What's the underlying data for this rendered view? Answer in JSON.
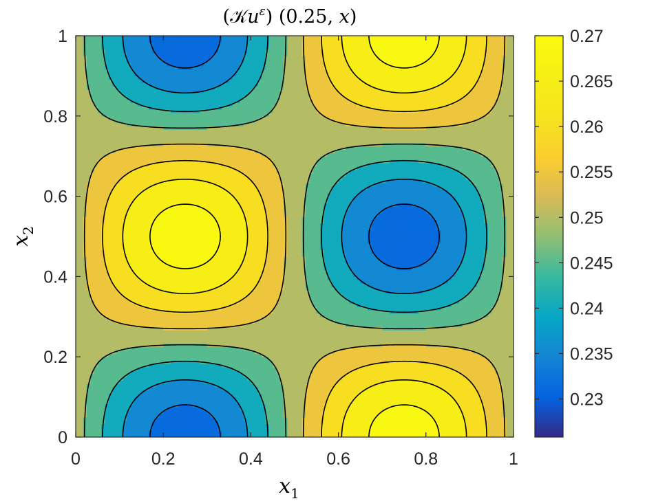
{
  "chart_data": {
    "type": "heatmap",
    "subtype": "filled-contour",
    "title": "(𝒦u^ε) (0.25, x)",
    "title_parts": {
      "open": "(",
      "operator": "𝒦",
      "var": "u",
      "sup": "ε",
      "close": ")",
      "args": "(0.25, ",
      "argvar": "x",
      "argclose": ")"
    },
    "xlabel": {
      "var": "x",
      "sub": "1"
    },
    "ylabel": {
      "var": "x",
      "sub": "2"
    },
    "xlim": [
      0,
      1
    ],
    "ylim": [
      0,
      1
    ],
    "x_ticks": [
      0,
      0.2,
      0.4,
      0.6,
      0.8,
      1
    ],
    "x_tick_labels": [
      "0",
      "0.2",
      "0.4",
      "0.6",
      "0.8",
      "1"
    ],
    "y_ticks": [
      0,
      0.2,
      0.4,
      0.6,
      0.8,
      1
    ],
    "y_tick_labels": [
      "0",
      "0.2",
      "0.4",
      "0.6",
      "0.8",
      "1"
    ],
    "field": {
      "formula": "0.25 - 0.02 * sin(2*pi*x1) * cos(2*pi*x2)",
      "min": 0.23,
      "max": 0.27
    },
    "contour_levels": [
      0.2325,
      0.2375,
      0.2425,
      0.2475,
      0.2525,
      0.2575,
      0.2625,
      0.2675
    ],
    "colormap": "parula",
    "colorbar": {
      "range": [
        0.2258,
        0.27
      ],
      "ticks": [
        0.23,
        0.235,
        0.24,
        0.245,
        0.25,
        0.255,
        0.26,
        0.265,
        0.27
      ],
      "tick_labels": [
        "0.23",
        "0.235",
        "0.24",
        "0.245",
        "0.25",
        "0.255",
        "0.26",
        "0.265",
        "0.27"
      ],
      "location": "right"
    },
    "grid": false
  }
}
